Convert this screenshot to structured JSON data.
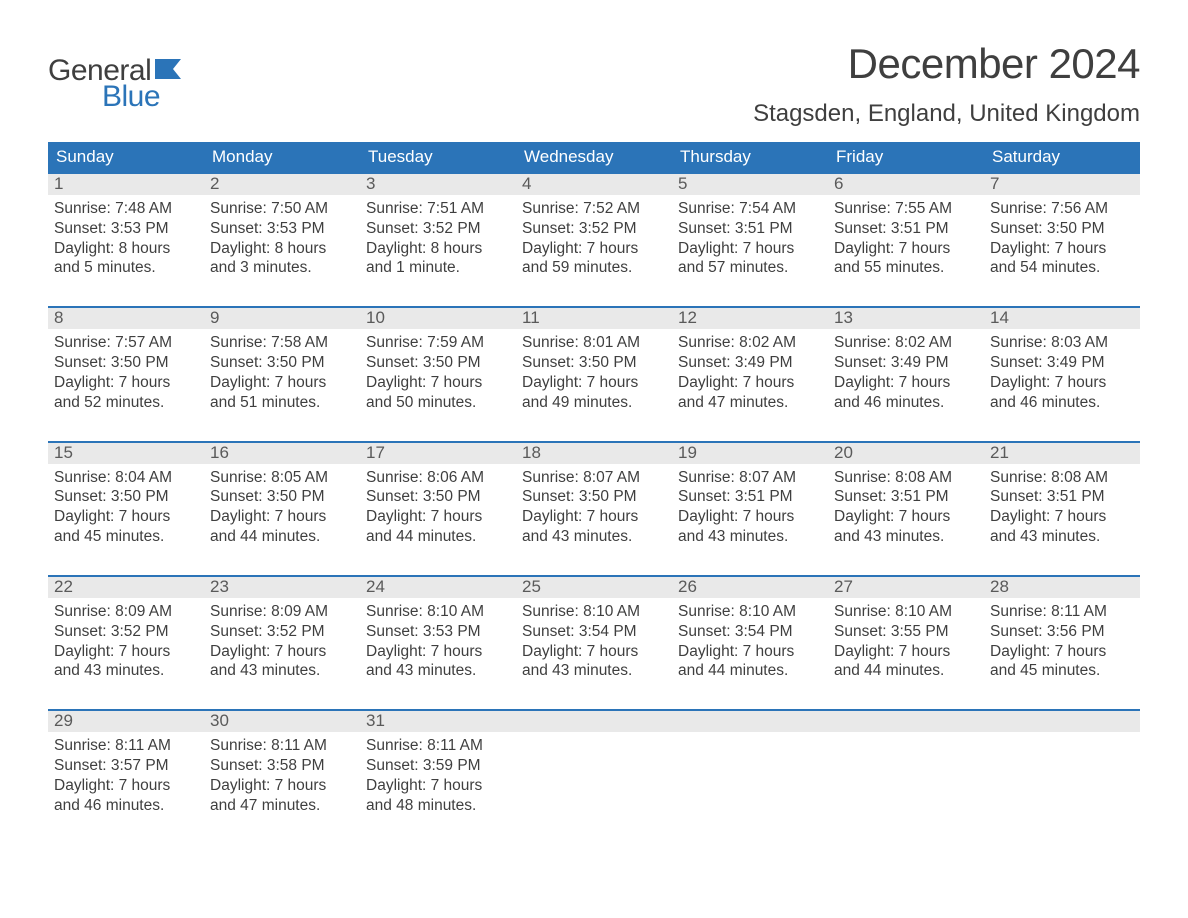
{
  "brand": {
    "part1": "General",
    "part2": "Blue",
    "flag_color": "#2b74b8"
  },
  "header": {
    "title": "December 2024",
    "location": "Stagsden, England, United Kingdom"
  },
  "colors": {
    "header_bg": "#2b74b8",
    "header_text": "#ffffff",
    "daynum_bg": "#e9e9e9",
    "daynum_border": "#2b74b8",
    "body_text": "#3f3f3f",
    "background": "#ffffff"
  },
  "typography": {
    "title_fontsize": 42,
    "location_fontsize": 24,
    "weekday_fontsize": 17,
    "daynum_fontsize": 17,
    "body_fontsize": 15.5
  },
  "weekdays": [
    "Sunday",
    "Monday",
    "Tuesday",
    "Wednesday",
    "Thursday",
    "Friday",
    "Saturday"
  ],
  "labels": {
    "sunrise": "Sunrise:",
    "sunset": "Sunset:",
    "daylight": "Daylight:"
  },
  "weeks": [
    [
      {
        "day": "1",
        "sunrise": "7:48 AM",
        "sunset": "3:53 PM",
        "dl1": "8 hours",
        "dl2": "and 5 minutes."
      },
      {
        "day": "2",
        "sunrise": "7:50 AM",
        "sunset": "3:53 PM",
        "dl1": "8 hours",
        "dl2": "and 3 minutes."
      },
      {
        "day": "3",
        "sunrise": "7:51 AM",
        "sunset": "3:52 PM",
        "dl1": "8 hours",
        "dl2": "and 1 minute."
      },
      {
        "day": "4",
        "sunrise": "7:52 AM",
        "sunset": "3:52 PM",
        "dl1": "7 hours",
        "dl2": "and 59 minutes."
      },
      {
        "day": "5",
        "sunrise": "7:54 AM",
        "sunset": "3:51 PM",
        "dl1": "7 hours",
        "dl2": "and 57 minutes."
      },
      {
        "day": "6",
        "sunrise": "7:55 AM",
        "sunset": "3:51 PM",
        "dl1": "7 hours",
        "dl2": "and 55 minutes."
      },
      {
        "day": "7",
        "sunrise": "7:56 AM",
        "sunset": "3:50 PM",
        "dl1": "7 hours",
        "dl2": "and 54 minutes."
      }
    ],
    [
      {
        "day": "8",
        "sunrise": "7:57 AM",
        "sunset": "3:50 PM",
        "dl1": "7 hours",
        "dl2": "and 52 minutes."
      },
      {
        "day": "9",
        "sunrise": "7:58 AM",
        "sunset": "3:50 PM",
        "dl1": "7 hours",
        "dl2": "and 51 minutes."
      },
      {
        "day": "10",
        "sunrise": "7:59 AM",
        "sunset": "3:50 PM",
        "dl1": "7 hours",
        "dl2": "and 50 minutes."
      },
      {
        "day": "11",
        "sunrise": "8:01 AM",
        "sunset": "3:50 PM",
        "dl1": "7 hours",
        "dl2": "and 49 minutes."
      },
      {
        "day": "12",
        "sunrise": "8:02 AM",
        "sunset": "3:49 PM",
        "dl1": "7 hours",
        "dl2": "and 47 minutes."
      },
      {
        "day": "13",
        "sunrise": "8:02 AM",
        "sunset": "3:49 PM",
        "dl1": "7 hours",
        "dl2": "and 46 minutes."
      },
      {
        "day": "14",
        "sunrise": "8:03 AM",
        "sunset": "3:49 PM",
        "dl1": "7 hours",
        "dl2": "and 46 minutes."
      }
    ],
    [
      {
        "day": "15",
        "sunrise": "8:04 AM",
        "sunset": "3:50 PM",
        "dl1": "7 hours",
        "dl2": "and 45 minutes."
      },
      {
        "day": "16",
        "sunrise": "8:05 AM",
        "sunset": "3:50 PM",
        "dl1": "7 hours",
        "dl2": "and 44 minutes."
      },
      {
        "day": "17",
        "sunrise": "8:06 AM",
        "sunset": "3:50 PM",
        "dl1": "7 hours",
        "dl2": "and 44 minutes."
      },
      {
        "day": "18",
        "sunrise": "8:07 AM",
        "sunset": "3:50 PM",
        "dl1": "7 hours",
        "dl2": "and 43 minutes."
      },
      {
        "day": "19",
        "sunrise": "8:07 AM",
        "sunset": "3:51 PM",
        "dl1": "7 hours",
        "dl2": "and 43 minutes."
      },
      {
        "day": "20",
        "sunrise": "8:08 AM",
        "sunset": "3:51 PM",
        "dl1": "7 hours",
        "dl2": "and 43 minutes."
      },
      {
        "day": "21",
        "sunrise": "8:08 AM",
        "sunset": "3:51 PM",
        "dl1": "7 hours",
        "dl2": "and 43 minutes."
      }
    ],
    [
      {
        "day": "22",
        "sunrise": "8:09 AM",
        "sunset": "3:52 PM",
        "dl1": "7 hours",
        "dl2": "and 43 minutes."
      },
      {
        "day": "23",
        "sunrise": "8:09 AM",
        "sunset": "3:52 PM",
        "dl1": "7 hours",
        "dl2": "and 43 minutes."
      },
      {
        "day": "24",
        "sunrise": "8:10 AM",
        "sunset": "3:53 PM",
        "dl1": "7 hours",
        "dl2": "and 43 minutes."
      },
      {
        "day": "25",
        "sunrise": "8:10 AM",
        "sunset": "3:54 PM",
        "dl1": "7 hours",
        "dl2": "and 43 minutes."
      },
      {
        "day": "26",
        "sunrise": "8:10 AM",
        "sunset": "3:54 PM",
        "dl1": "7 hours",
        "dl2": "and 44 minutes."
      },
      {
        "day": "27",
        "sunrise": "8:10 AM",
        "sunset": "3:55 PM",
        "dl1": "7 hours",
        "dl2": "and 44 minutes."
      },
      {
        "day": "28",
        "sunrise": "8:11 AM",
        "sunset": "3:56 PM",
        "dl1": "7 hours",
        "dl2": "and 45 minutes."
      }
    ],
    [
      {
        "day": "29",
        "sunrise": "8:11 AM",
        "sunset": "3:57 PM",
        "dl1": "7 hours",
        "dl2": "and 46 minutes."
      },
      {
        "day": "30",
        "sunrise": "8:11 AM",
        "sunset": "3:58 PM",
        "dl1": "7 hours",
        "dl2": "and 47 minutes."
      },
      {
        "day": "31",
        "sunrise": "8:11 AM",
        "sunset": "3:59 PM",
        "dl1": "7 hours",
        "dl2": "and 48 minutes."
      },
      {
        "empty": true
      },
      {
        "empty": true
      },
      {
        "empty": true
      },
      {
        "empty": true
      }
    ]
  ]
}
